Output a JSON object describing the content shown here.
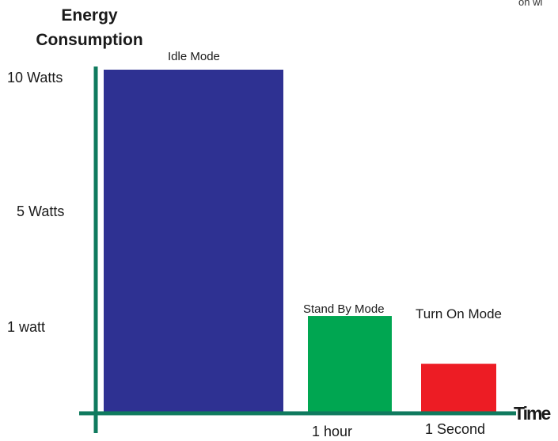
{
  "chart_data": {
    "type": "bar",
    "title": "",
    "ylabel_lines": [
      "Energy",
      "Consumption"
    ],
    "xlabel": "Time",
    "corner_text": "on wi",
    "y_ticks": [
      "10 Watts",
      "5 Watts",
      "1 watt"
    ],
    "x_ticks": [
      "1 hour",
      "1 Second"
    ],
    "categories": [
      "Idle Mode",
      "Stand By Mode",
      "Turn On Mode"
    ],
    "values": [
      10,
      2.8,
      1.4
    ],
    "colors": [
      "#2e3192",
      "#00a651",
      "#ed1c24"
    ],
    "axis_color": "#0f7a5e",
    "grid": false
  }
}
